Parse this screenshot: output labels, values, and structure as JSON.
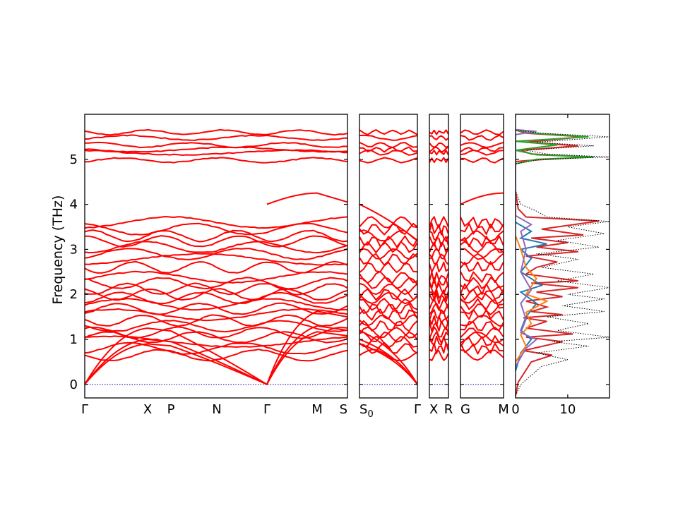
{
  "chart_data": {
    "type": "line",
    "ylabel": "Frequency (THz)",
    "ylim": [
      -0.3,
      6.0
    ],
    "y_ticks": [
      "0",
      "1",
      "2",
      "3",
      "4",
      "5"
    ],
    "band_color": "#ff0000",
    "zero_line_color": "#0000aa",
    "band_panels": [
      {
        "segments": [
          {
            "start": "Γ",
            "end": "X"
          },
          {
            "start": "X",
            "end": "P"
          },
          {
            "start": "P",
            "end": "N"
          },
          {
            "start": "N",
            "end": "Γ"
          },
          {
            "start": "Γ",
            "end": "M"
          },
          {
            "start": "M",
            "end": "S"
          }
        ],
        "tick_labels": [
          "Γ",
          "X",
          "P",
          "N",
          "Γ",
          "M",
          "S"
        ]
      },
      {
        "segments": [
          {
            "start": "S0",
            "end": "Γ"
          }
        ],
        "tick_labels": [
          "S0",
          "Γ"
        ]
      },
      {
        "segments": [
          {
            "start": "X",
            "end": "R"
          }
        ],
        "tick_labels": [
          "X",
          "R"
        ]
      },
      {
        "segments": [
          {
            "start": "G",
            "end": "M"
          }
        ],
        "tick_labels": [
          "G",
          "M"
        ]
      }
    ],
    "high_bands_approx": [
      4.98,
      5.15,
      5.22,
      5.32,
      5.48,
      5.6
    ],
    "optical_bands_approx": [
      0.65,
      0.8,
      0.95,
      1.05,
      1.15,
      1.3,
      1.42,
      1.55,
      1.68,
      1.78,
      1.92,
      2.0,
      2.12,
      2.25,
      2.38,
      2.6,
      2.78,
      2.9,
      3.05,
      3.18,
      3.3,
      3.45,
      3.6
    ],
    "dos_panel": {
      "x_ticks": [
        "0",
        "10"
      ],
      "xlim": [
        0,
        18
      ],
      "series": [
        {
          "color": "#d62728",
          "points": [
            [
              0,
              -0.25
            ],
            [
              0.5,
              0.05
            ],
            [
              3,
              0.5
            ],
            [
              7,
              0.65
            ],
            [
              1.5,
              0.75
            ],
            [
              9,
              0.95
            ],
            [
              2,
              1.05
            ],
            [
              11,
              1.12
            ],
            [
              2,
              1.25
            ],
            [
              6,
              1.4
            ],
            [
              1.5,
              1.48
            ],
            [
              9,
              1.55
            ],
            [
              3,
              1.62
            ],
            [
              6,
              1.72
            ],
            [
              2,
              1.85
            ],
            [
              9,
              1.95
            ],
            [
              4,
              2.05
            ],
            [
              12,
              2.15
            ],
            [
              3,
              2.25
            ],
            [
              12,
              2.3
            ],
            [
              2,
              2.45
            ],
            [
              4,
              2.6
            ],
            [
              8,
              2.72
            ],
            [
              2,
              2.85
            ],
            [
              12,
              2.95
            ],
            [
              4,
              3.05
            ],
            [
              10,
              3.15
            ],
            [
              3,
              3.25
            ],
            [
              13,
              3.32
            ],
            [
              5,
              3.45
            ],
            [
              16,
              3.63
            ],
            [
              2,
              3.72
            ],
            [
              0.5,
              3.9
            ],
            [
              0,
              4.3
            ],
            [
              0,
              4.95
            ],
            [
              3,
              4.98
            ],
            [
              14,
              5.05
            ],
            [
              3,
              5.12
            ],
            [
              1,
              5.2
            ],
            [
              12,
              5.3
            ],
            [
              2,
              5.38
            ],
            [
              13,
              5.5
            ],
            [
              2,
              5.58
            ],
            [
              0,
              5.65
            ]
          ]
        },
        {
          "color": "#2ca02c",
          "points": [
            [
              0,
              4.9
            ],
            [
              4,
              5.0
            ],
            [
              15,
              5.05
            ],
            [
              4,
              5.1
            ],
            [
              0,
              5.2
            ],
            [
              8,
              5.32
            ],
            [
              0,
              5.4
            ],
            [
              14,
              5.5
            ],
            [
              3,
              5.58
            ],
            [
              0,
              5.65
            ]
          ]
        },
        {
          "color": "#1f77b4",
          "points": [
            [
              0,
              0.3
            ],
            [
              1,
              0.7
            ],
            [
              3,
              1.0
            ],
            [
              1,
              1.2
            ],
            [
              2,
              1.5
            ],
            [
              4,
              1.8
            ],
            [
              1,
              2.05
            ],
            [
              5,
              2.2
            ],
            [
              1,
              2.5
            ],
            [
              3,
              2.8
            ],
            [
              1,
              3.0
            ],
            [
              6,
              3.12
            ],
            [
              1,
              3.25
            ],
            [
              3,
              3.4
            ],
            [
              0,
              3.6
            ]
          ]
        },
        {
          "color": "#ff7f0e",
          "points": [
            [
              0,
              0.5
            ],
            [
              2,
              0.85
            ],
            [
              1,
              1.1
            ],
            [
              3,
              1.35
            ],
            [
              2,
              1.6
            ],
            [
              6,
              1.85
            ],
            [
              2,
              2.0
            ],
            [
              4,
              2.35
            ],
            [
              2,
              2.6
            ],
            [
              1,
              3.0
            ],
            [
              0,
              3.3
            ]
          ]
        },
        {
          "color": "#9467bd",
          "points": [
            [
              0,
              0.4
            ],
            [
              2,
              0.8
            ],
            [
              4,
              1.0
            ],
            [
              1,
              1.15
            ],
            [
              2,
              1.45
            ],
            [
              1,
              1.8
            ],
            [
              3,
              2.1
            ],
            [
              1,
              2.5
            ],
            [
              2,
              3.0
            ],
            [
              1,
              3.4
            ],
            [
              3,
              3.55
            ],
            [
              0,
              3.75
            ],
            [
              0,
              5.55
            ],
            [
              4,
              5.62
            ],
            [
              0,
              5.66
            ]
          ]
        },
        {
          "color": "#000000",
          "dotted": true,
          "points": [
            [
              0,
              -0.25
            ],
            [
              1,
              0.0
            ],
            [
              5,
              0.4
            ],
            [
              10,
              0.55
            ],
            [
              4,
              0.7
            ],
            [
              14,
              0.85
            ],
            [
              7,
              0.95
            ],
            [
              18,
              1.05
            ],
            [
              8,
              1.2
            ],
            [
              14,
              1.35
            ],
            [
              6,
              1.5
            ],
            [
              17,
              1.62
            ],
            [
              9,
              1.75
            ],
            [
              17,
              1.9
            ],
            [
              10,
              2.0
            ],
            [
              18,
              2.15
            ],
            [
              8,
              2.3
            ],
            [
              15,
              2.45
            ],
            [
              5,
              2.6
            ],
            [
              12,
              2.78
            ],
            [
              4,
              2.9
            ],
            [
              16,
              3.05
            ],
            [
              8,
              3.2
            ],
            [
              17,
              3.35
            ],
            [
              10,
              3.5
            ],
            [
              18,
              3.62
            ],
            [
              6,
              3.72
            ],
            [
              4,
              3.85
            ],
            [
              1,
              4.0
            ],
            [
              0,
              4.3
            ],
            [
              0,
              4.9
            ],
            [
              5,
              5.0
            ],
            [
              18,
              5.05
            ],
            [
              6,
              5.12
            ],
            [
              2,
              5.2
            ],
            [
              15,
              5.3
            ],
            [
              4,
              5.38
            ],
            [
              18,
              5.5
            ],
            [
              5,
              5.58
            ],
            [
              0,
              5.65
            ]
          ]
        }
      ]
    }
  }
}
